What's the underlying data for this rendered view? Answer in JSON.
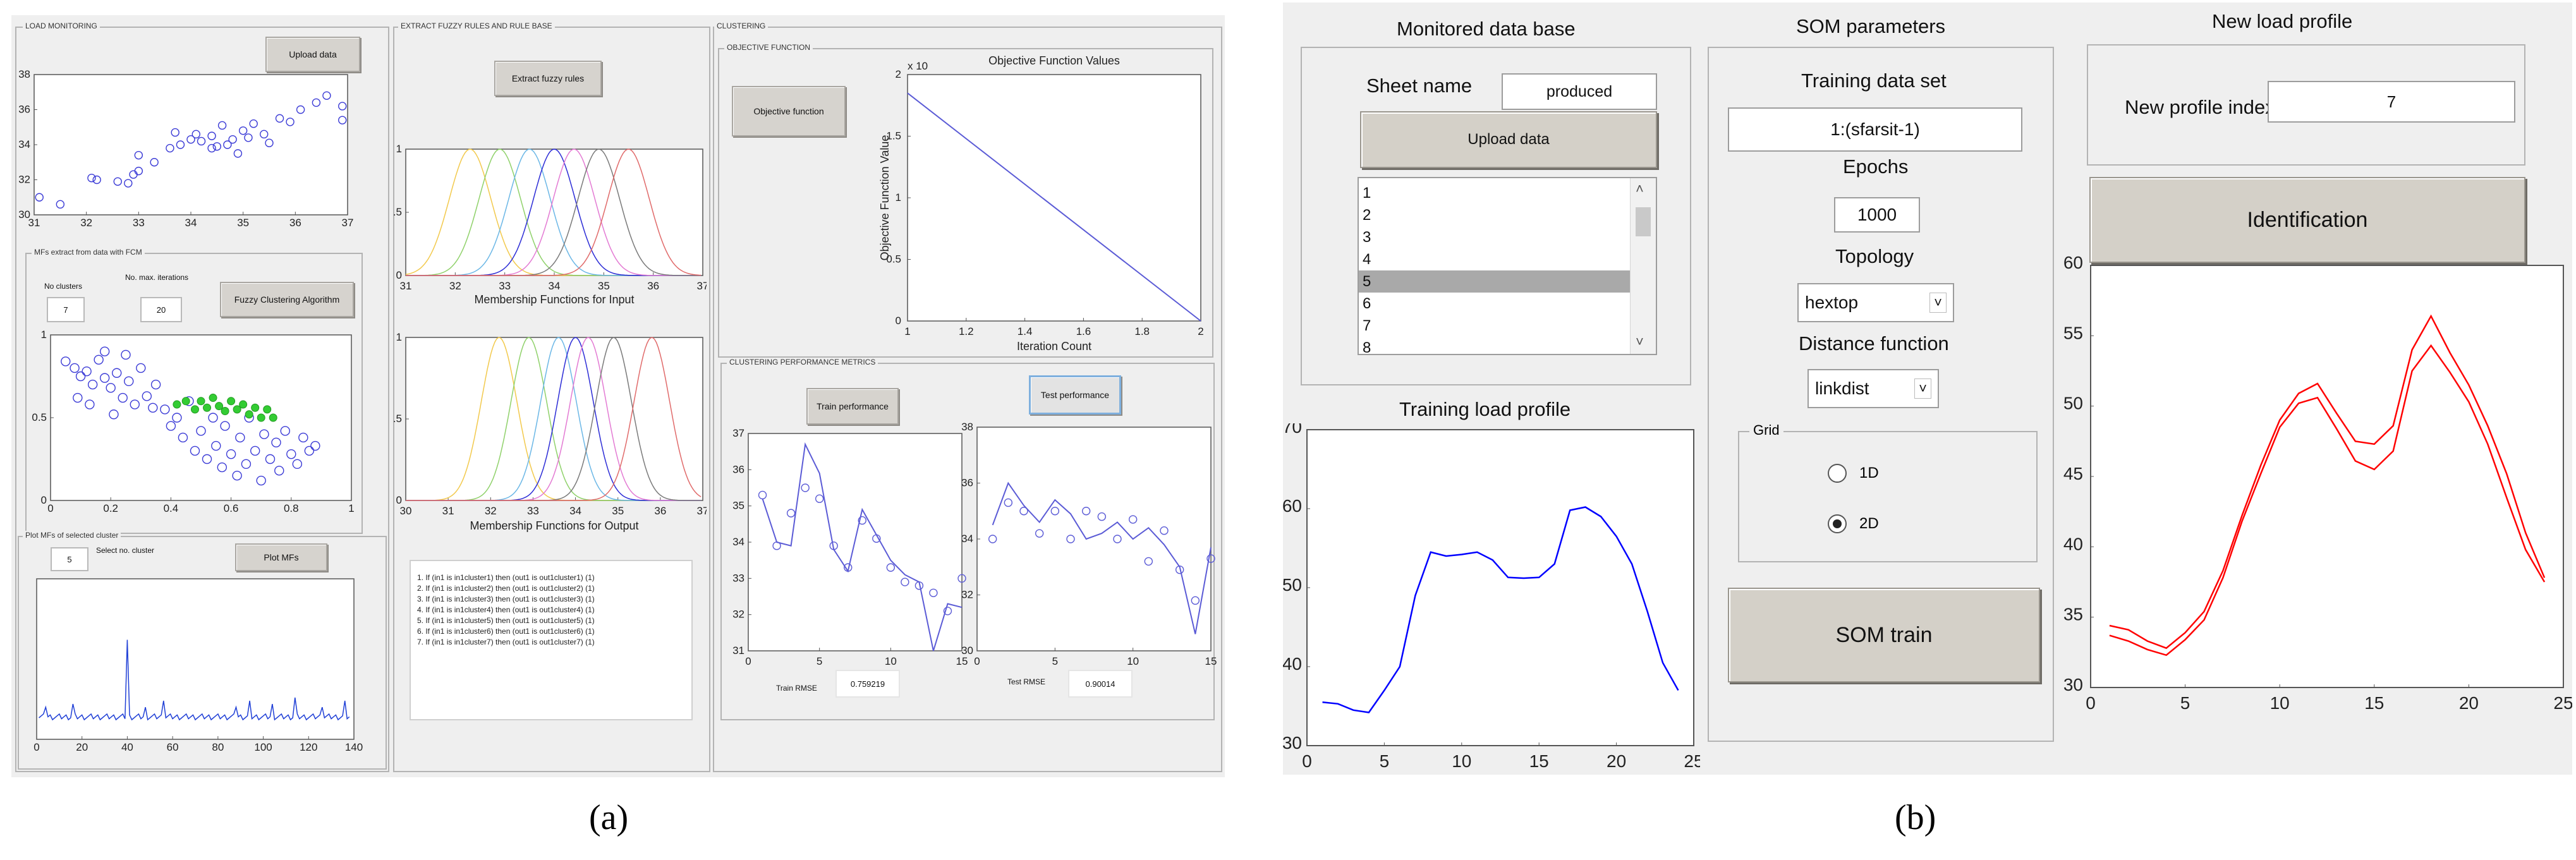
{
  "panel_a": {
    "load_monitoring": {
      "title": "LOAD MONITORING",
      "upload_label": "Upload data",
      "mfs_title": "MFs extract from data with FCM",
      "no_clusters_label": "No clusters",
      "no_clusters_value": "7",
      "max_iter_label": "No. max. iterations",
      "max_iter_value": "20",
      "fcm_button": "Fuzzy Clustering Algorithm",
      "plot_title": "Plot MFs of selected cluster",
      "select_value": "5",
      "select_label": "Select no. cluster",
      "plot_button": "Plot MFs"
    },
    "extract": {
      "title": "EXTRACT FUZZY RULES AND RULE BASE",
      "button": "Extract fuzzy rules",
      "mf_input_label": "Membership Functions for Input",
      "mf_output_label": "Membership Functions for Output",
      "rules": [
        "1. If (in1 is in1cluster1) then (out1 is out1cluster1) (1)",
        "2. If (in1 is in1cluster2) then (out1 is out1cluster2) (1)",
        "3. If (in1 is in1cluster3) then (out1 is out1cluster3) (1)",
        "4. If (in1 is in1cluster4) then (out1 is out1cluster4) (1)",
        "5. If (in1 is in1cluster5) then (out1 is out1cluster5) (1)",
        "6. If (in1 is in1cluster6) then (out1 is out1cluster6) (1)",
        "7. If (in1 is in1cluster7) then (out1 is out1cluster7) (1)"
      ]
    },
    "clustering": {
      "title": "CLUSTERING",
      "objective_title": "OBJECTIVE FUNCTION",
      "objective_button": "Objective function",
      "obj_chart_title": "Objective Function Values",
      "obj_xlabel": "Iteration Count",
      "obj_ylabel": "Objective Function Value",
      "obj_exponent": "x 10",
      "perf_title": "CLUSTERING PERFORMANCE METRICS",
      "train_button": "Train performance",
      "test_button": "Test performance",
      "train_rmse_label": "Train RMSE",
      "train_rmse_value": "0.759219",
      "test_rmse_label": "Test RMSE",
      "test_rmse_value": "0.90014"
    },
    "caption": "(a)"
  },
  "panel_b": {
    "monitored": {
      "title": "Monitored data base",
      "sheet_label": "Sheet name",
      "sheet_value": "produced",
      "upload_button": "Upload data",
      "list_items": [
        "1",
        "2",
        "3",
        "4",
        "5",
        "6",
        "7",
        "8"
      ],
      "selected_index": 4
    },
    "training_profile_title": "Training load profile",
    "som": {
      "title": "SOM parameters",
      "training_set_label": "Training data set",
      "training_set_value": "1:(sfarsit-1)",
      "epochs_label": "Epochs",
      "epochs_value": "1000",
      "topology_label": "Topology",
      "topology_value": "hextop",
      "distance_label": "Distance function",
      "distance_value": "linkdist",
      "grid_label": "Grid",
      "grid_options": [
        "1D",
        "2D"
      ],
      "grid_selected": "2D",
      "train_button": "SOM train"
    },
    "new_profile": {
      "title": "New  load profile",
      "index_label": "New profile index",
      "index_value": "7",
      "identify_button": "Identification"
    },
    "caption": "(b)"
  },
  "colors": {
    "window_bg": "#efefef",
    "blue_line": "#0000ff",
    "red_line": "#ff0000",
    "scatter_blue": "#3b3bd6",
    "scatter_green": "#33cc33"
  },
  "chart_data": [
    {
      "id": "load-scatter",
      "type": "scatter",
      "xlim": [
        31,
        37
      ],
      "ylim": [
        30,
        38
      ],
      "xticks": [
        31,
        32,
        33,
        34,
        35,
        36,
        37
      ],
      "yticks": [
        30,
        32,
        34,
        36,
        38
      ],
      "points": [
        [
          31.1,
          31.0
        ],
        [
          31.5,
          30.6
        ],
        [
          32.1,
          32.1
        ],
        [
          32.2,
          32.0
        ],
        [
          32.6,
          31.9
        ],
        [
          32.8,
          31.8
        ],
        [
          32.9,
          32.3
        ],
        [
          33.0,
          33.4
        ],
        [
          33.0,
          32.5
        ],
        [
          33.3,
          33.0
        ],
        [
          33.6,
          33.8
        ],
        [
          33.7,
          34.7
        ],
        [
          33.8,
          34.0
        ],
        [
          34.0,
          34.3
        ],
        [
          34.1,
          34.6
        ],
        [
          34.2,
          34.2
        ],
        [
          34.4,
          33.8
        ],
        [
          34.4,
          34.5
        ],
        [
          34.5,
          33.9
        ],
        [
          34.6,
          35.1
        ],
        [
          34.7,
          34.0
        ],
        [
          34.8,
          34.3
        ],
        [
          34.9,
          33.5
        ],
        [
          35.0,
          34.8
        ],
        [
          35.1,
          34.4
        ],
        [
          35.2,
          35.2
        ],
        [
          35.4,
          34.6
        ],
        [
          35.5,
          34.1
        ],
        [
          35.7,
          35.5
        ],
        [
          35.9,
          35.3
        ],
        [
          36.1,
          36.0
        ],
        [
          36.4,
          36.4
        ],
        [
          36.6,
          36.8
        ],
        [
          36.9,
          35.4
        ],
        [
          36.9,
          36.2
        ]
      ]
    },
    {
      "id": "fcm-scatter",
      "type": "scatter",
      "xlim": [
        0,
        1
      ],
      "ylim": [
        0,
        1
      ],
      "xticks": [
        0,
        0.2,
        0.4,
        0.6,
        0.8,
        1
      ],
      "yticks": [
        0,
        0.5,
        1
      ],
      "series": [
        {
          "color": "blue",
          "points": [
            [
              0.05,
              0.84
            ],
            [
              0.08,
              0.8
            ],
            [
              0.1,
              0.75
            ],
            [
              0.12,
              0.78
            ],
            [
              0.14,
              0.7
            ],
            [
              0.16,
              0.85
            ],
            [
              0.18,
              0.74
            ],
            [
              0.2,
              0.68
            ],
            [
              0.22,
              0.77
            ],
            [
              0.24,
              0.62
            ],
            [
              0.26,
              0.72
            ],
            [
              0.28,
              0.58
            ],
            [
              0.3,
              0.8
            ],
            [
              0.32,
              0.63
            ],
            [
              0.34,
              0.56
            ],
            [
              0.35,
              0.7
            ],
            [
              0.38,
              0.55
            ],
            [
              0.4,
              0.45
            ],
            [
              0.42,
              0.5
            ],
            [
              0.44,
              0.38
            ],
            [
              0.46,
              0.6
            ],
            [
              0.48,
              0.3
            ],
            [
              0.5,
              0.42
            ],
            [
              0.52,
              0.25
            ],
            [
              0.54,
              0.5
            ],
            [
              0.55,
              0.33
            ],
            [
              0.57,
              0.2
            ],
            [
              0.58,
              0.45
            ],
            [
              0.6,
              0.28
            ],
            [
              0.62,
              0.15
            ],
            [
              0.63,
              0.38
            ],
            [
              0.65,
              0.22
            ],
            [
              0.66,
              0.5
            ],
            [
              0.68,
              0.3
            ],
            [
              0.7,
              0.12
            ],
            [
              0.71,
              0.4
            ],
            [
              0.73,
              0.25
            ],
            [
              0.75,
              0.35
            ],
            [
              0.76,
              0.18
            ],
            [
              0.78,
              0.42
            ],
            [
              0.8,
              0.28
            ],
            [
              0.82,
              0.22
            ],
            [
              0.84,
              0.38
            ],
            [
              0.86,
              0.3
            ],
            [
              0.88,
              0.33
            ],
            [
              0.18,
              0.9
            ],
            [
              0.25,
              0.88
            ],
            [
              0.09,
              0.62
            ],
            [
              0.13,
              0.58
            ],
            [
              0.21,
              0.52
            ]
          ]
        },
        {
          "color": "green",
          "points": [
            [
              0.42,
              0.58
            ],
            [
              0.45,
              0.6
            ],
            [
              0.48,
              0.55
            ],
            [
              0.5,
              0.6
            ],
            [
              0.52,
              0.56
            ],
            [
              0.54,
              0.62
            ],
            [
              0.56,
              0.57
            ],
            [
              0.58,
              0.54
            ],
            [
              0.6,
              0.6
            ],
            [
              0.62,
              0.55
            ],
            [
              0.64,
              0.58
            ],
            [
              0.66,
              0.52
            ],
            [
              0.68,
              0.56
            ],
            [
              0.7,
              0.5
            ],
            [
              0.72,
              0.55
            ],
            [
              0.74,
              0.5
            ]
          ]
        }
      ]
    },
    {
      "id": "mf-plot",
      "type": "line",
      "xlim": [
        0,
        140
      ],
      "ylim": [
        0,
        1
      ],
      "xticks": [
        0,
        20,
        40,
        60,
        80,
        100,
        120,
        140
      ],
      "baseline": 0.14,
      "spikes": [
        [
          4,
          0.2
        ],
        [
          16,
          0.22
        ],
        [
          40,
          0.62
        ],
        [
          48,
          0.2
        ],
        [
          56,
          0.24
        ],
        [
          88,
          0.2
        ],
        [
          94,
          0.24
        ],
        [
          104,
          0.22
        ],
        [
          114,
          0.26
        ],
        [
          126,
          0.2
        ],
        [
          136,
          0.24
        ]
      ]
    },
    {
      "id": "mf-input",
      "type": "line",
      "xlim": [
        31,
        37
      ],
      "ylim": [
        0,
        1
      ],
      "xticks": [
        31,
        32,
        33,
        34,
        35,
        36,
        37
      ],
      "yticks": [
        0,
        0.5,
        1
      ],
      "centers": [
        32.3,
        32.9,
        33.5,
        34.0,
        34.4,
        34.9,
        35.5
      ]
    },
    {
      "id": "mf-output",
      "type": "line",
      "xlim": [
        30,
        37
      ],
      "ylim": [
        0,
        1
      ],
      "xticks": [
        30,
        31,
        32,
        33,
        34,
        35,
        36,
        37
      ],
      "yticks": [
        0,
        0.5,
        1
      ],
      "centers": [
        32.2,
        32.9,
        33.6,
        34.0,
        34.3,
        34.9,
        35.8
      ]
    },
    {
      "id": "objective",
      "type": "line",
      "xlim": [
        1,
        2
      ],
      "ylim": [
        0,
        2
      ],
      "xticks": [
        1,
        1.2,
        1.4,
        1.6,
        1.8,
        2
      ],
      "yticks": [
        0,
        0.5,
        1,
        1.5,
        2
      ],
      "x": [
        1,
        2
      ],
      "y": [
        1.85,
        0
      ]
    },
    {
      "id": "train-perf",
      "type": "line",
      "xlim": [
        0,
        15
      ],
      "ylim": [
        31,
        37
      ],
      "xticks": [
        0,
        5,
        10,
        15
      ],
      "yticks": [
        31,
        32,
        33,
        34,
        35,
        36,
        37
      ],
      "line_x": [
        1,
        2,
        3,
        4,
        5,
        6,
        7,
        8,
        9,
        10,
        11,
        12,
        13,
        14,
        15
      ],
      "line_y": [
        35.2,
        34.0,
        33.9,
        36.7,
        35.9,
        33.8,
        33.2,
        34.9,
        34.2,
        33.5,
        33.1,
        32.9,
        31.0,
        32.3,
        32.2
      ],
      "points": [
        [
          1,
          35.3
        ],
        [
          2,
          33.9
        ],
        [
          3,
          34.8
        ],
        [
          4,
          35.5
        ],
        [
          5,
          35.2
        ],
        [
          6,
          33.9
        ],
        [
          7,
          33.3
        ],
        [
          8,
          34.6
        ],
        [
          9,
          34.1
        ],
        [
          10,
          33.3
        ],
        [
          11,
          32.9
        ],
        [
          12,
          32.8
        ],
        [
          13,
          32.6
        ],
        [
          14,
          32.1
        ],
        [
          15,
          33.0
        ]
      ]
    },
    {
      "id": "test-perf",
      "type": "line",
      "xlim": [
        0,
        15
      ],
      "ylim": [
        30,
        38
      ],
      "xticks": [
        0,
        5,
        10,
        15
      ],
      "yticks": [
        30,
        32,
        34,
        36,
        38
      ],
      "line_x": [
        1,
        2,
        3,
        4,
        5,
        6,
        7,
        8,
        9,
        10,
        11,
        12,
        13,
        14,
        15
      ],
      "line_y": [
        34.5,
        36.0,
        35.2,
        34.6,
        35.4,
        34.9,
        34.0,
        34.2,
        34.6,
        34.0,
        34.4,
        33.8,
        33.0,
        30.6,
        33.7
      ],
      "points": [
        [
          1,
          34.0
        ],
        [
          2,
          35.3
        ],
        [
          3,
          35.0
        ],
        [
          4,
          34.2
        ],
        [
          5,
          35.0
        ],
        [
          6,
          34.0
        ],
        [
          7,
          35.0
        ],
        [
          8,
          34.8
        ],
        [
          9,
          34.0
        ],
        [
          10,
          34.7
        ],
        [
          11,
          33.2
        ],
        [
          12,
          34.3
        ],
        [
          13,
          32.9
        ],
        [
          14,
          31.8
        ],
        [
          15,
          33.3
        ]
      ]
    },
    {
      "id": "training-load-profile",
      "type": "line",
      "xlim": [
        0,
        25
      ],
      "ylim": [
        30,
        70
      ],
      "xticks": [
        0,
        5,
        10,
        15,
        20,
        25
      ],
      "yticks": [
        30,
        40,
        50,
        60,
        70
      ],
      "x": [
        1,
        2,
        3,
        4,
        5,
        6,
        7,
        8,
        9,
        10,
        11,
        12,
        13,
        14,
        15,
        16,
        17,
        18,
        19,
        20,
        21,
        22,
        23,
        24
      ],
      "y": [
        35.5,
        35.3,
        34.5,
        34.2,
        37.0,
        40.0,
        49.0,
        54.5,
        54.0,
        54.2,
        54.5,
        53.5,
        51.3,
        51.2,
        51.3,
        53.0,
        59.8,
        60.2,
        59.0,
        56.5,
        53.0,
        47.0,
        40.5,
        37.0
      ]
    },
    {
      "id": "new-load-profile",
      "type": "line",
      "xlim": [
        0,
        25
      ],
      "ylim": [
        30,
        60
      ],
      "xticks": [
        0,
        5,
        10,
        15,
        20,
        25
      ],
      "yticks": [
        30,
        35,
        40,
        45,
        50,
        55,
        60
      ],
      "x": [
        1,
        2,
        3,
        4,
        5,
        6,
        7,
        8,
        9,
        10,
        11,
        12,
        13,
        14,
        15,
        16,
        17,
        18,
        19,
        20,
        21,
        22,
        23,
        24
      ],
      "series": [
        {
          "values": [
            34.4,
            34.1,
            33.3,
            32.8,
            33.9,
            35.4,
            38.3,
            42.2,
            45.8,
            49.0,
            50.9,
            51.6,
            49.5,
            47.5,
            47.3,
            48.6,
            54.0,
            56.4,
            53.8,
            51.5,
            48.6,
            45.2,
            41.0,
            37.8
          ]
        },
        {
          "values": [
            33.7,
            33.3,
            32.7,
            32.3,
            33.4,
            34.8,
            37.8,
            41.8,
            45.2,
            48.5,
            50.2,
            50.6,
            48.4,
            46.1,
            45.5,
            46.8,
            52.5,
            54.3,
            52.4,
            50.3,
            47.3,
            43.5,
            39.8,
            37.5
          ]
        }
      ]
    }
  ]
}
